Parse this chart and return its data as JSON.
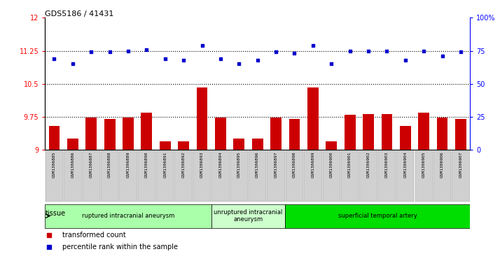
{
  "title": "GDS5186 / 41431",
  "samples": [
    "GSM1306885",
    "GSM1306886",
    "GSM1306887",
    "GSM1306888",
    "GSM1306889",
    "GSM1306890",
    "GSM1306891",
    "GSM1306892",
    "GSM1306893",
    "GSM1306894",
    "GSM1306895",
    "GSM1306896",
    "GSM1306897",
    "GSM1306898",
    "GSM1306899",
    "GSM1306900",
    "GSM1306901",
    "GSM1306902",
    "GSM1306903",
    "GSM1306904",
    "GSM1306905",
    "GSM1306906",
    "GSM1306907"
  ],
  "transformed_count": [
    9.55,
    9.25,
    9.73,
    9.7,
    9.73,
    9.85,
    9.2,
    9.2,
    10.42,
    9.73,
    9.25,
    9.25,
    9.73,
    9.7,
    10.42,
    9.2,
    9.8,
    9.82,
    9.82,
    9.55,
    9.85,
    9.73,
    9.7
  ],
  "percentile_rank": [
    69,
    65,
    74,
    74,
    75,
    76,
    69,
    68,
    79,
    69,
    65,
    68,
    74,
    73,
    79,
    65,
    75,
    75,
    75,
    68,
    75,
    71,
    74
  ],
  "ylim_left": [
    9,
    12
  ],
  "ylim_right": [
    0,
    100
  ],
  "yticks_left": [
    9,
    9.75,
    10.5,
    11.25,
    12
  ],
  "yticks_right": [
    0,
    25,
    50,
    75,
    100
  ],
  "ytick_labels_left": [
    "9",
    "9.75",
    "10.5",
    "11.25",
    "12"
  ],
  "ytick_labels_right": [
    "0",
    "25",
    "50",
    "75",
    "100%"
  ],
  "hlines": [
    9.75,
    10.5,
    11.25
  ],
  "bar_color": "#cc0000",
  "dot_color": "#0000cc",
  "groups": [
    {
      "label": "ruptured intracranial aneurysm",
      "start": 0,
      "end": 9,
      "color": "#aaffaa"
    },
    {
      "label": "unruptured intracranial\naneurysm",
      "start": 9,
      "end": 13,
      "color": "#ccffcc"
    },
    {
      "label": "superficial temporal artery",
      "start": 13,
      "end": 23,
      "color": "#00dd00"
    }
  ],
  "legend_bar_label": "transformed count",
  "legend_dot_label": "percentile rank within the sample",
  "tissue_label": "tissue",
  "plot_bg_color": "#ffffff",
  "tick_bg_color": "#d0d0d0"
}
